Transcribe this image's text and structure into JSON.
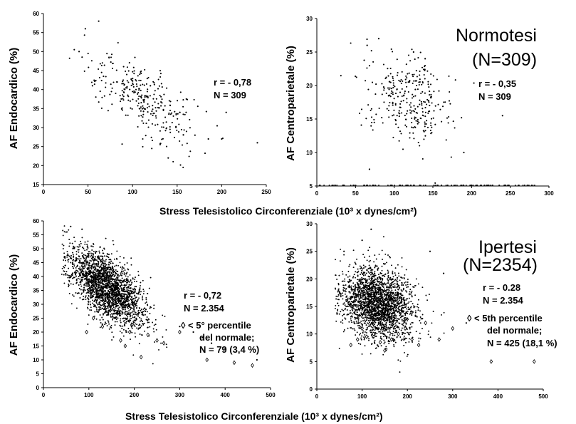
{
  "chart_data": [
    {
      "id": "tl",
      "type": "scatter",
      "ylabel": "AF Endocardico (%)",
      "xlim": [
        0,
        250
      ],
      "ylim": [
        15,
        60
      ],
      "xticks": [
        0,
        50,
        100,
        150,
        200,
        250
      ],
      "yticks": [
        15,
        20,
        25,
        30,
        35,
        40,
        45,
        50,
        55,
        60
      ],
      "annotations": [
        "r = - 0,78",
        "N = 309"
      ],
      "n_points": 309,
      "trend": {
        "x_center": 110,
        "x_sd": 30,
        "y_at_center": 38,
        "slope": -0.13,
        "y_sd": 4.5
      },
      "points": [
        [
          40,
          50
        ],
        [
          47,
          56
        ],
        [
          55,
          41
        ],
        [
          62,
          58
        ],
        [
          120,
          41
        ],
        [
          140,
          22
        ],
        [
          170,
          28
        ],
        [
          185,
          27
        ],
        [
          200,
          27
        ],
        [
          205,
          34
        ],
        [
          240,
          26
        ]
      ],
      "diamond_points": []
    },
    {
      "id": "tr",
      "type": "scatter",
      "ylabel": "AF Centroparietale (%)",
      "xlim": [
        0,
        300
      ],
      "ylim": [
        5,
        30
      ],
      "xticks": [
        0,
        50,
        100,
        150,
        200,
        250,
        300
      ],
      "yticks": [
        5,
        10,
        15,
        20,
        25,
        30
      ],
      "annotations": [
        "r = - 0,35",
        "N = 309"
      ],
      "legend_title": [
        "Normotesi",
        "(N=309)"
      ],
      "n_points": 309,
      "trend": {
        "x_center": 118,
        "x_sd": 28,
        "y_at_center": 18,
        "slope": -0.035,
        "y_sd": 3.2
      },
      "points": [
        [
          65,
          26
        ],
        [
          80,
          27
        ],
        [
          125,
          25
        ],
        [
          140,
          24
        ],
        [
          68,
          7.5
        ],
        [
          190,
          10
        ],
        [
          240,
          15.5
        ]
      ],
      "diamond_points": []
    },
    {
      "id": "bl",
      "type": "scatter",
      "ylabel": "AF Endocardico (%)",
      "xlabel": "Stress Telesistolico Circonferenziale (10³ x dynes/cm²)",
      "xlim": [
        0,
        500
      ],
      "ylim": [
        0,
        60
      ],
      "xticks": [
        0,
        100,
        200,
        300,
        400,
        500
      ],
      "yticks": [
        0,
        5,
        10,
        15,
        20,
        25,
        30,
        35,
        40,
        45,
        50,
        55,
        60
      ],
      "annotations": [
        "r = - 0,72",
        "N = 2.354"
      ],
      "diamond_legend": [
        "◊ < 5° percentile",
        "del normale;",
        "N = 79 (3,4 %)"
      ],
      "n_points": 2354,
      "trend": {
        "x_center": 140,
        "x_sd": 40,
        "y_at_center": 36,
        "slope": -0.1,
        "y_sd": 5.5
      },
      "points": [
        [
          60,
          58
        ],
        [
          85,
          57
        ],
        [
          300,
          22
        ],
        [
          330,
          20
        ],
        [
          350,
          18
        ],
        [
          370,
          16
        ],
        [
          400,
          14
        ],
        [
          470,
          10
        ]
      ],
      "diamond_points": [
        [
          95,
          20
        ],
        [
          110,
          25
        ],
        [
          130,
          22
        ],
        [
          150,
          26
        ],
        [
          170,
          17
        ],
        [
          180,
          15
        ],
        [
          190,
          20
        ],
        [
          200,
          23
        ],
        [
          215,
          11
        ],
        [
          230,
          19
        ],
        [
          250,
          17
        ],
        [
          265,
          16
        ],
        [
          300,
          20
        ],
        [
          360,
          10
        ],
        [
          420,
          9
        ],
        [
          460,
          8
        ]
      ]
    },
    {
      "id": "br",
      "type": "scatter",
      "ylabel": "AF Centroparietale (%)",
      "xlabel": "Stress Telesistolico Circonferenziale (10³ x dynes/cm²)",
      "xlim": [
        0,
        500
      ],
      "ylim": [
        0,
        30
      ],
      "xticks": [
        0,
        100,
        200,
        300,
        400,
        500
      ],
      "yticks": [
        0,
        5,
        10,
        15,
        20,
        25,
        30
      ],
      "annotations": [
        "r = - 0.28",
        "N = 2.354"
      ],
      "legend_title": [
        "Ipertesi",
        "(N=2354)"
      ],
      "diamond_legend": [
        "◊ < 5th percentile",
        "del normale;",
        "N = 425 (18,1 %)"
      ],
      "n_points": 2354,
      "trend": {
        "x_center": 135,
        "x_sd": 40,
        "y_at_center": 15.5,
        "slope": -0.02,
        "y_sd": 3.2
      },
      "points": [
        [
          60,
          25
        ],
        [
          100,
          27
        ],
        [
          120,
          29
        ],
        [
          250,
          25
        ],
        [
          280,
          21
        ],
        [
          330,
          12
        ]
      ],
      "diamond_points": [
        [
          75,
          8
        ],
        [
          90,
          9
        ],
        [
          100,
          11
        ],
        [
          110,
          9.5
        ],
        [
          125,
          10
        ],
        [
          140,
          8.5
        ],
        [
          150,
          7
        ],
        [
          165,
          9
        ],
        [
          180,
          10
        ],
        [
          195,
          11
        ],
        [
          210,
          9
        ],
        [
          225,
          8
        ],
        [
          240,
          12
        ],
        [
          270,
          9
        ],
        [
          300,
          11
        ],
        [
          385,
          5
        ],
        [
          480,
          5
        ]
      ]
    }
  ]
}
